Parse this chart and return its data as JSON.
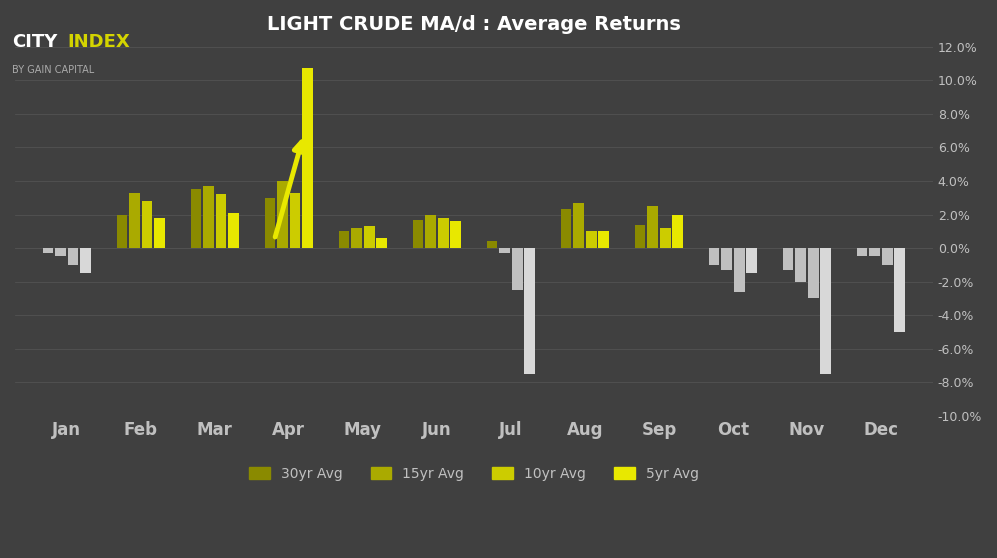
{
  "title": "LIGHT CRUDE MA/d : Average Returns",
  "background_color": "#404040",
  "grid_color": "#525252",
  "text_color": "#c0c0c0",
  "months": [
    "Jan",
    "Feb",
    "Mar",
    "Apr",
    "May",
    "Jun",
    "Jul",
    "Aug",
    "Sep",
    "Oct",
    "Nov",
    "Dec"
  ],
  "series": [
    {
      "label": "30yr Avg",
      "pos_color": "#8a8a00",
      "neg_color": "#c0c0c0",
      "values": [
        -0.003,
        0.02,
        0.035,
        0.03,
        0.01,
        0.017,
        0.004,
        0.023,
        0.014,
        -0.01,
        -0.013,
        -0.005
      ]
    },
    {
      "label": "15yr Avg",
      "pos_color": "#aaaa00",
      "neg_color": "#c0c0c0",
      "values": [
        -0.005,
        0.033,
        0.037,
        0.04,
        0.012,
        0.02,
        -0.003,
        0.027,
        0.025,
        -0.013,
        -0.02,
        -0.005
      ]
    },
    {
      "label": "10yr Avg",
      "pos_color": "#cccc00",
      "neg_color": "#c0c0c0",
      "values": [
        -0.01,
        0.028,
        0.032,
        0.033,
        0.013,
        0.018,
        -0.025,
        0.01,
        0.012,
        -0.026,
        -0.03,
        -0.01
      ]
    },
    {
      "label": "5yr Avg",
      "pos_color": "#e8e800",
      "neg_color": "#d8d8d8",
      "values": [
        -0.015,
        0.018,
        0.021,
        0.107,
        0.006,
        0.016,
        -0.075,
        0.01,
        0.02,
        -0.015,
        -0.075,
        -0.05
      ]
    }
  ],
  "ylim": [
    -0.1,
    0.12
  ],
  "yticks": [
    -0.1,
    -0.08,
    -0.06,
    -0.04,
    -0.02,
    0.0,
    0.02,
    0.04,
    0.06,
    0.08,
    0.1,
    0.12
  ],
  "bar_width": 0.17,
  "arrow_color": "#e8e800",
  "logo_city_color": "#ffffff",
  "logo_index_color": "#d4d400",
  "logo_sub_color": "#aaaaaa"
}
